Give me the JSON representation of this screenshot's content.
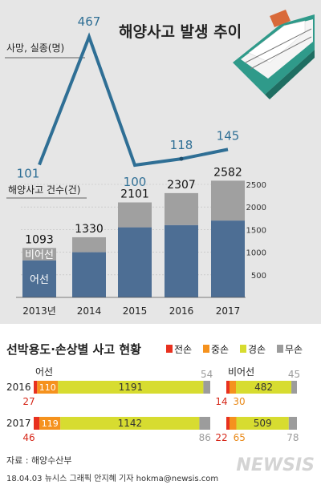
{
  "chart_data": [
    {
      "type": "line",
      "title": "해양사고 발생 추이",
      "ylabel": "사망, 실종(명)",
      "x": [
        "2013년",
        "2014",
        "2015",
        "2016",
        "2017"
      ],
      "values": [
        101,
        467,
        100,
        118,
        145
      ],
      "colors": {
        "line": "#2f6f95"
      }
    },
    {
      "type": "bar",
      "ylabel": "해양사고 건수(건)",
      "categories": [
        "2013년",
        "2014",
        "2015",
        "2016",
        "2017"
      ],
      "totals": [
        1093,
        1330,
        2101,
        2307,
        2582
      ],
      "series": [
        {
          "name": "어선",
          "values": [
            820,
            1000,
            1550,
            1600,
            1700
          ]
        },
        {
          "name": "비어선",
          "values": [
            273,
            330,
            551,
            707,
            882
          ]
        }
      ],
      "ylim": [
        0,
        2500
      ],
      "yticks": [
        500,
        1000,
        1500,
        2000,
        2500
      ],
      "colors": {
        "fishing": "#4d6e94",
        "nonfishing": "#a0a0a0"
      }
    },
    {
      "type": "bar",
      "title": "선박용도·손상별 사고 현황",
      "legend": [
        "전손",
        "중손",
        "경손",
        "무손"
      ],
      "colors": {
        "전손": "#e8311f",
        "중손": "#f5921e",
        "경손": "#d7dc30",
        "무손": "#9c9c9c"
      },
      "groups": [
        {
          "name": "어선",
          "rows": [
            {
              "year": "2016",
              "values": [
                27,
                110,
                1191,
                54
              ]
            },
            {
              "year": "2017",
              "values": [
                46,
                119,
                1142,
                86
              ]
            }
          ]
        },
        {
          "name": "비어선",
          "rows": [
            {
              "year": "2016",
              "values": [
                14,
                30,
                482,
                45
              ]
            },
            {
              "year": "2017",
              "values": [
                22,
                65,
                509,
                78
              ]
            }
          ]
        }
      ]
    }
  ],
  "footer": {
    "source": "자료 : 해양수산부",
    "credit": "18.04.03 뉴시스 그래픽 안지혜 기자 hokma@newsis.com",
    "logo": "NEWSIS"
  }
}
